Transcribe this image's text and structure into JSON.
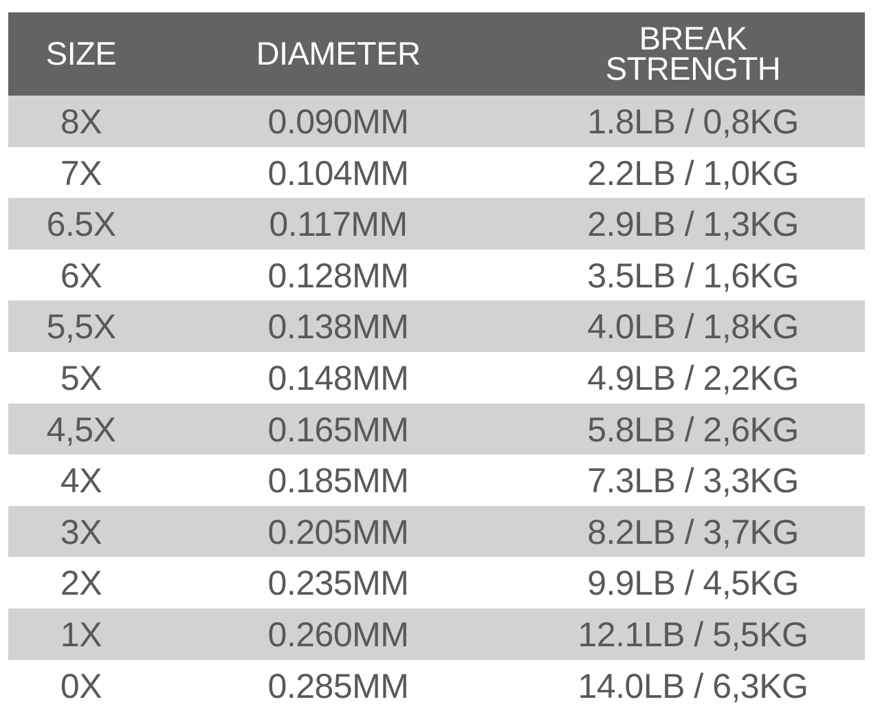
{
  "table": {
    "headers": [
      "SIZE",
      "DIAMETER",
      "BREAK STRENGTH"
    ],
    "header_lines": {
      "break_1": "BREAK",
      "break_2": "STRENGTH"
    },
    "rows": [
      [
        "8X",
        "0.090MM",
        "1.8LB / 0,8KG"
      ],
      [
        "7X",
        "0.104MM",
        "2.2LB / 1,0KG"
      ],
      [
        "6.5X",
        "0.117MM",
        "2.9LB / 1,3KG"
      ],
      [
        "6X",
        "0.128MM",
        "3.5LB / 1,6KG"
      ],
      [
        "5,5X",
        "0.138MM",
        "4.0LB / 1,8KG"
      ],
      [
        "5X",
        "0.148MM",
        "4.9LB / 2,2KG"
      ],
      [
        "4,5X",
        "0.165MM",
        "5.8LB / 2,6KG"
      ],
      [
        "4X",
        "0.185MM",
        "7.3LB / 3,3KG"
      ],
      [
        "3X",
        "0.205MM",
        "8.2LB / 3,7KG"
      ],
      [
        "2X",
        "0.235MM",
        "9.9LB / 4,5KG"
      ],
      [
        "1X",
        "0.260MM",
        "12.1LB / 5,5KG"
      ],
      [
        "0X",
        "0.285MM",
        "14.0LB / 6,3KG"
      ]
    ]
  },
  "colors": {
    "header_bg": "#636366",
    "stripe_bg": "#d1d2d4",
    "text": "#58595b"
  }
}
